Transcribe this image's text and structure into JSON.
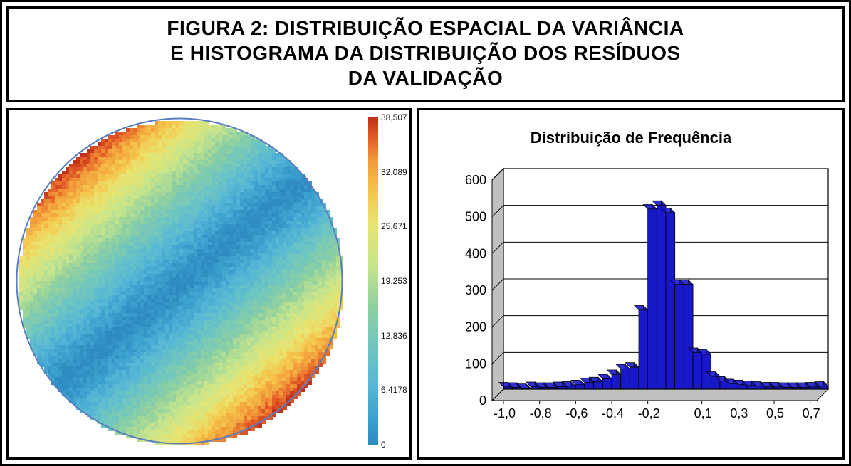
{
  "title": {
    "line1": "FIGURA 2: DISTRIBUIÇÃO ESPACIAL DA VARIÂNCIA",
    "line2": "E HISTOGRAMA DA DISTRIBUIÇÃO DOS RESÍDUOS",
    "line3": "DA VALIDAÇÃO",
    "fontsize": 28,
    "fontweight": 900
  },
  "layout": {
    "outer_border_color": "#000000",
    "panel_border_color": "#000000",
    "background_color": "#ffffff"
  },
  "heatmap": {
    "type": "heatmap",
    "shape": "circle",
    "grid_size": 92,
    "diagonal_angle_deg": -40,
    "value_min": 0,
    "value_max": 38.507,
    "noise_amplitude": 0.9,
    "band_stops": [
      {
        "t": 0.0,
        "color": "#2e8bc0"
      },
      {
        "t": 0.08,
        "color": "#3aa0cf"
      },
      {
        "t": 0.18,
        "color": "#56b7d6"
      },
      {
        "t": 0.3,
        "color": "#6fc6c0"
      },
      {
        "t": 0.42,
        "color": "#8fd0a0"
      },
      {
        "t": 0.55,
        "color": "#c7e58c"
      },
      {
        "t": 0.68,
        "color": "#e9e46f"
      },
      {
        "t": 0.78,
        "color": "#f5c44a"
      },
      {
        "t": 0.87,
        "color": "#f29a3a"
      },
      {
        "t": 0.94,
        "color": "#e35b26"
      },
      {
        "t": 1.0,
        "color": "#c2311a"
      }
    ],
    "circle_border_color": "#5a7fc0",
    "colorbar": {
      "ticks": [
        {
          "value": 38.507,
          "label": "38,507"
        },
        {
          "value": 32.089,
          "label": "32,089"
        },
        {
          "value": 25.671,
          "label": "25,671"
        },
        {
          "value": 19.253,
          "label": "19,253"
        },
        {
          "value": 12.836,
          "label": "12,836"
        },
        {
          "value": 6.4178,
          "label": "6,4178"
        },
        {
          "value": 0,
          "label": "0"
        }
      ],
      "label_fontsize": 12
    }
  },
  "histogram": {
    "type": "bar",
    "title": "Distribuição de Frequência",
    "title_fontsize": 22,
    "title_fontweight": 700,
    "bar_fill": "#1818c8",
    "bar_stroke": "#000000",
    "plot_box_fill": "#c0c0c0",
    "plot_face_fill": "#ffffff",
    "grid_color": "#000000",
    "axis_label_fontsize": 18,
    "ylim": [
      0,
      600
    ],
    "ytick_step": 100,
    "y_ticks": [
      0,
      100,
      200,
      300,
      400,
      500,
      600
    ],
    "x_tick_labels": [
      "-1,0",
      "-0,8",
      "-0,6",
      "-0,4",
      "-0,2",
      "0,1",
      "0,3",
      "0,5",
      "0,7"
    ],
    "x_tick_positions_index": [
      0,
      4,
      8,
      12,
      16,
      22,
      26,
      30,
      34
    ],
    "bins": [
      {
        "i": 0,
        "x_center": -1.0,
        "count": 6
      },
      {
        "i": 1,
        "x_center": -0.95,
        "count": 5
      },
      {
        "i": 2,
        "x_center": -0.9,
        "count": 2
      },
      {
        "i": 3,
        "x_center": -0.85,
        "count": 7
      },
      {
        "i": 4,
        "x_center": -0.8,
        "count": 5
      },
      {
        "i": 5,
        "x_center": -0.75,
        "count": 5
      },
      {
        "i": 6,
        "x_center": -0.7,
        "count": 7
      },
      {
        "i": 7,
        "x_center": -0.65,
        "count": 8
      },
      {
        "i": 8,
        "x_center": -0.6,
        "count": 12
      },
      {
        "i": 9,
        "x_center": -0.55,
        "count": 18
      },
      {
        "i": 10,
        "x_center": -0.5,
        "count": 20
      },
      {
        "i": 11,
        "x_center": -0.45,
        "count": 28
      },
      {
        "i": 12,
        "x_center": -0.4,
        "count": 40
      },
      {
        "i": 13,
        "x_center": -0.35,
        "count": 55
      },
      {
        "i": 14,
        "x_center": -0.3,
        "count": 60
      },
      {
        "i": 15,
        "x_center": -0.25,
        "count": 215
      },
      {
        "i": 16,
        "x_center": -0.2,
        "count": 490
      },
      {
        "i": 17,
        "x_center": -0.15,
        "count": 500
      },
      {
        "i": 18,
        "x_center": -0.1,
        "count": 480
      },
      {
        "i": 19,
        "x_center": -0.05,
        "count": 285
      },
      {
        "i": 20,
        "x_center": 0.0,
        "count": 285
      },
      {
        "i": 21,
        "x_center": 0.05,
        "count": 100
      },
      {
        "i": 22,
        "x_center": 0.1,
        "count": 95
      },
      {
        "i": 23,
        "x_center": 0.15,
        "count": 35
      },
      {
        "i": 24,
        "x_center": 0.2,
        "count": 22
      },
      {
        "i": 25,
        "x_center": 0.25,
        "count": 15
      },
      {
        "i": 26,
        "x_center": 0.3,
        "count": 12
      },
      {
        "i": 27,
        "x_center": 0.35,
        "count": 10
      },
      {
        "i": 28,
        "x_center": 0.4,
        "count": 8
      },
      {
        "i": 29,
        "x_center": 0.45,
        "count": 6
      },
      {
        "i": 30,
        "x_center": 0.5,
        "count": 6
      },
      {
        "i": 31,
        "x_center": 0.55,
        "count": 5
      },
      {
        "i": 32,
        "x_center": 0.6,
        "count": 5
      },
      {
        "i": 33,
        "x_center": 0.65,
        "count": 5
      },
      {
        "i": 34,
        "x_center": 0.7,
        "count": 6
      },
      {
        "i": 35,
        "x_center": 0.75,
        "count": 8
      }
    ]
  }
}
